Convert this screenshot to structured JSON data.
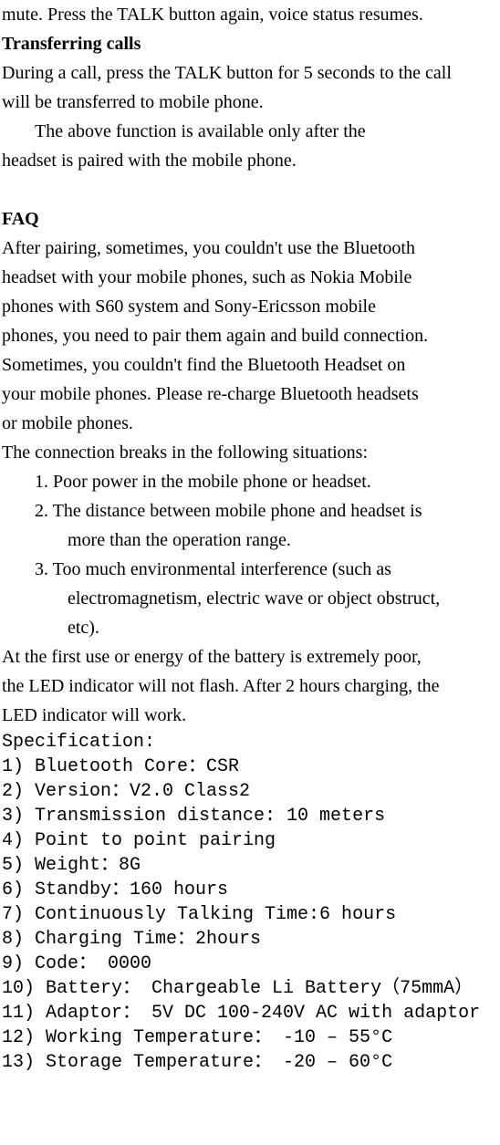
{
  "lines": [
    {
      "cls": "",
      "text": "mute. Press the TALK button again, voice status resumes."
    },
    {
      "cls": "bold",
      "text": "Transferring calls"
    },
    {
      "cls": "",
      "text": "During a call, press the TALK button for 5 seconds to the call"
    },
    {
      "cls": "",
      "text": "will be transferred to mobile phone."
    },
    {
      "cls": "indent1",
      "text": "The above function is available only after the"
    },
    {
      "cls": "",
      "text": "headset is paired    with the mobile phone."
    },
    {
      "cls": "",
      "text": " "
    },
    {
      "cls": "bold",
      "text": "FAQ"
    },
    {
      "cls": "",
      "text": "After pairing, sometimes, you couldn't use the Bluetooth"
    },
    {
      "cls": "",
      "text": "headset with your mobile phones, such as Nokia Mobile"
    },
    {
      "cls": "",
      "text": "phones with S60 system and Sony-Ericsson mobile"
    },
    {
      "cls": "",
      "text": "phones, you need to pair them again and build connection."
    },
    {
      "cls": "",
      "text": "Sometimes, you couldn't find the Bluetooth Headset on"
    },
    {
      "cls": "",
      "text": "your mobile phones. Please re-charge Bluetooth headsets"
    },
    {
      "cls": "",
      "text": "or mobile phones."
    },
    {
      "cls": "",
      "text": "The connection breaks in the following situations:"
    },
    {
      "cls": "indent1",
      "text": "1. Poor power in the mobile phone or headset."
    },
    {
      "cls": "indent1",
      "text": "2. The distance between mobile phone and headset is"
    },
    {
      "cls": "indent2",
      "text": "more than the operation range."
    },
    {
      "cls": "indent1",
      "text": "3. Too much environmental interference (such as"
    },
    {
      "cls": "indent2",
      "text": "electromagnetism, electric wave or object obstruct,"
    },
    {
      "cls": "indent2",
      "text": "etc)."
    },
    {
      "cls": "",
      "text": "At the first use or energy of the battery is extremely poor,"
    },
    {
      "cls": "",
      "text": "the LED indicator will not flash. After 2 hours charging, the"
    },
    {
      "cls": "",
      "text": "LED indicator will work."
    },
    {
      "cls": "mono",
      "text": "Specification:"
    },
    {
      "cls": "mono",
      "text": "1) Bluetooth Core：CSR"
    },
    {
      "cls": "mono",
      "text": "2) Version：V2.0 Class2"
    },
    {
      "cls": "mono",
      "text": "3) Transmission distance: 10 meters"
    },
    {
      "cls": "mono",
      "text": "4) Point to point pairing"
    },
    {
      "cls": "mono",
      "text": "5) Weight：8G"
    },
    {
      "cls": "mono",
      "text": "6) Standby：160 hours"
    },
    {
      "cls": "mono",
      "text": "7) Continuously Talking Time:6 hours"
    },
    {
      "cls": "mono",
      "text": "8) Charging Time：2hours"
    },
    {
      "cls": "mono",
      "text": "9) Code： 0000"
    },
    {
      "cls": "mono",
      "text": "10) Battery： Chargeable Li Battery（75mmA）"
    },
    {
      "cls": "mono",
      "text": "11) Adaptor： 5V DC 100-240V AC with adaptor"
    },
    {
      "cls": "mono",
      "text": "12) Working Temperature： -10 – 55°C"
    },
    {
      "cls": "mono",
      "text": "13) Storage Temperature： -20 – 60°C"
    }
  ]
}
